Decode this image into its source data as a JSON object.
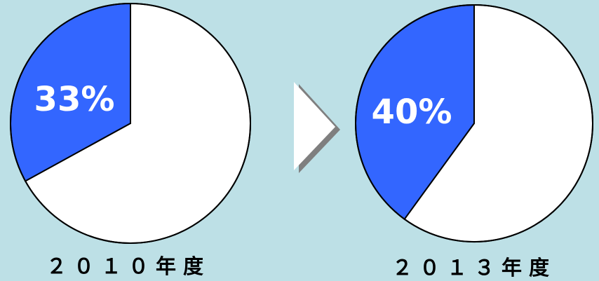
{
  "colors": {
    "background": "#bde0e6",
    "highlight": "#3366ff",
    "remainder": "#ffffff",
    "outline": "#000000",
    "arrow": "#ffffff",
    "arrow_shadow": "#7f7f7f"
  },
  "chart_data": [
    {
      "type": "pie",
      "categories": [
        "",
        ""
      ],
      "values": [
        33,
        67
      ],
      "labels": {
        "percent": "33%",
        "year": "２０１０年度"
      },
      "highlight_value": 33,
      "start_direction": "top"
    },
    {
      "type": "pie",
      "categories": [
        "",
        ""
      ],
      "values": [
        40,
        60
      ],
      "labels": {
        "percent": "40%",
        "year": "２０１３年度"
      },
      "highlight_value": 40,
      "start_direction": "top"
    }
  ],
  "transition_icon": "right-triangle-arrow-icon"
}
